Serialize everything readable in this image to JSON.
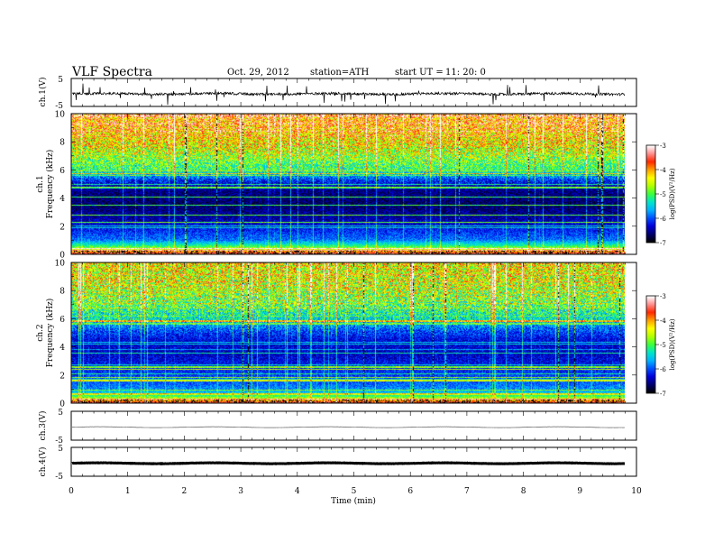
{
  "header": {
    "title": "VLF  Spectra",
    "date": "Oct. 29, 2012",
    "station": "station=ATH",
    "start_label": "start  UT  =",
    "start_time": "11: 20: 0"
  },
  "colors": {
    "spectrogram_scale": [
      "#000000",
      "#00006e",
      "#0000d8",
      "#0050ff",
      "#00b4ff",
      "#00e6c8",
      "#3cff3c",
      "#b4ff00",
      "#ffff00",
      "#ffa000",
      "#ff2800",
      "#ff9090",
      "#ffffff"
    ]
  },
  "chart_data": [
    {
      "type": "line",
      "panel": "ch1-waveform",
      "ylabel": "ch.1(V)",
      "ylim": [
        -5,
        5
      ],
      "yticks": [
        "5",
        "-5"
      ],
      "xlim": [
        0,
        10
      ],
      "series_note": "broadband waveform, baseline about -0.5 V with impulsive spikes reaching roughly +1.5 V / -3 V"
    },
    {
      "type": "heatmap",
      "panel": "ch1-spectrogram",
      "ylabel": "Frequency  (kHz)",
      "channel_label": "ch.1",
      "ylim": [
        0,
        10
      ],
      "yticks": [
        "0",
        "2",
        "4",
        "6",
        "8",
        "10"
      ],
      "xlim": [
        0,
        9.8
      ],
      "colorbar": {
        "label": "log(PSD)(V²/Hz)",
        "range": [
          -7,
          -3
        ],
        "ticks": [
          "-3",
          "-4",
          "-5",
          "-6",
          "-7"
        ]
      },
      "profile": [
        {
          "f": 0.0,
          "v": -3.4
        },
        {
          "f": 0.3,
          "v": -4.5
        },
        {
          "f": 0.6,
          "v": -5.2
        },
        {
          "f": 1.0,
          "v": -5.9
        },
        {
          "f": 1.5,
          "v": -6.1
        },
        {
          "f": 2.5,
          "v": -6.5
        },
        {
          "f": 3.5,
          "v": -6.7
        },
        {
          "f": 4.5,
          "v": -6.6
        },
        {
          "f": 5.2,
          "v": -6.2
        },
        {
          "f": 6.0,
          "v": -5.2
        },
        {
          "f": 7.0,
          "v": -4.7
        },
        {
          "f": 8.0,
          "v": -4.3
        },
        {
          "f": 9.0,
          "v": -4.0
        },
        {
          "f": 10.0,
          "v": -3.9
        }
      ]
    },
    {
      "type": "heatmap",
      "panel": "ch2-spectrogram",
      "ylabel": "Frequency  (kHz)",
      "channel_label": "ch.2",
      "ylim": [
        0,
        10
      ],
      "yticks": [
        "0",
        "2",
        "4",
        "6",
        "8",
        "10"
      ],
      "xlim": [
        0,
        9.8
      ],
      "colorbar": {
        "label": "log(PSD)(V²/Hz)",
        "range": [
          -7,
          -3
        ],
        "ticks": [
          "-3",
          "-4",
          "-5",
          "-6",
          "-7"
        ]
      },
      "profile": [
        {
          "f": 0.0,
          "v": -3.5
        },
        {
          "f": 0.3,
          "v": -4.6
        },
        {
          "f": 0.6,
          "v": -5.4
        },
        {
          "f": 1.0,
          "v": -5.8
        },
        {
          "f": 1.5,
          "v": -6.0
        },
        {
          "f": 2.5,
          "v": -6.2
        },
        {
          "f": 3.5,
          "v": -6.4
        },
        {
          "f": 4.5,
          "v": -6.3
        },
        {
          "f": 5.2,
          "v": -6.0
        },
        {
          "f": 6.0,
          "v": -5.4
        },
        {
          "f": 7.0,
          "v": -5.0
        },
        {
          "f": 8.0,
          "v": -4.7
        },
        {
          "f": 9.0,
          "v": -4.5
        },
        {
          "f": 10.0,
          "v": -4.4
        }
      ]
    },
    {
      "type": "line",
      "panel": "ch3-waveform",
      "ylabel": "ch.3(V)",
      "ylim": [
        -5,
        5
      ],
      "yticks": [
        "5",
        "-5"
      ],
      "xlim": [
        0,
        10
      ],
      "series_note": "flat trace near 0 V"
    },
    {
      "type": "line",
      "panel": "ch4-waveform",
      "ylabel": "ch.4(V)",
      "ylim": [
        -5,
        5
      ],
      "yticks": [
        "5",
        "-5"
      ],
      "xlim": [
        0,
        10
      ],
      "series_note": "thick flat trace near 0 V"
    }
  ],
  "xaxis": {
    "label": "Time  (min)",
    "ticks": [
      "0",
      "1",
      "2",
      "3",
      "4",
      "5",
      "6",
      "7",
      "8",
      "9",
      "10"
    ]
  }
}
